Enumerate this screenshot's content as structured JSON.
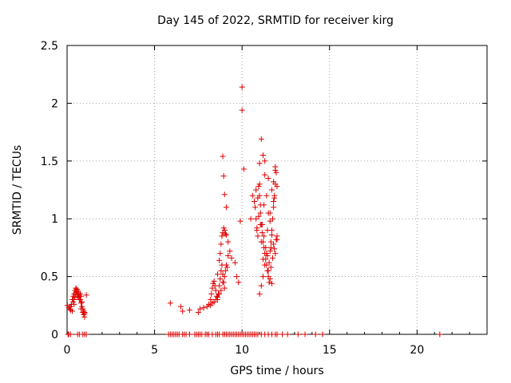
{
  "chart_data": {
    "type": "scatter",
    "title": "Day 145 of 2022, SRMTID for receiver kirg",
    "xlabel": "GPS time / hours",
    "ylabel": "SRMTID / TECUs",
    "xlim": [
      0,
      24
    ],
    "ylim": [
      0,
      2.5
    ],
    "xticks": [
      0,
      5,
      10,
      15,
      20
    ],
    "yticks": [
      0,
      0.5,
      1,
      1.5,
      2,
      2.5
    ],
    "ytick_labels": [
      "0",
      "0.5",
      "1",
      "1.5",
      "2",
      "2.5"
    ],
    "grid": true,
    "marker": "+",
    "color": "#e00000",
    "series": [
      {
        "name": "SRMTID",
        "x": [
          0.02,
          0.1,
          0.15,
          0.2,
          0.25,
          0.3,
          0.35,
          0.4,
          0.45,
          0.5,
          0.55,
          0.6,
          0.65,
          0.7,
          0.75,
          0.8,
          0.85,
          0.9,
          0.95,
          1.0,
          1.1,
          0.3,
          0.35,
          0.4,
          0.45,
          0.5,
          0.55,
          0.6,
          0.65,
          0.7,
          0.75,
          0.8,
          0.85,
          0.9,
          0.95,
          1.0,
          0.2,
          0.4,
          0.6,
          0.8,
          1.0,
          5.9,
          6.5,
          6.6,
          7.0,
          7.5,
          7.6,
          7.8,
          8.0,
          8.1,
          8.2,
          8.3,
          8.4,
          8.5,
          8.6,
          8.7,
          8.8,
          8.9,
          9.0,
          8.2,
          8.25,
          8.3,
          8.35,
          8.4,
          8.45,
          8.5,
          8.55,
          8.6,
          8.65,
          8.7,
          8.75,
          8.8,
          8.85,
          8.9,
          8.95,
          9.0,
          9.05,
          9.1,
          9.15,
          9.2,
          8.6,
          8.7,
          8.75,
          8.8,
          8.85,
          8.9,
          8.95,
          9.0,
          9.05,
          9.1,
          9.2,
          9.3,
          9.4,
          9.6,
          9.7,
          9.8,
          8.9,
          8.95,
          9.0,
          9.1,
          10.0,
          10.0,
          10.1,
          9.9,
          10.5,
          10.6,
          10.7,
          10.75,
          10.8,
          10.85,
          10.9,
          10.95,
          11.0,
          11.05,
          11.1,
          11.15,
          11.2,
          11.25,
          11.3,
          11.35,
          11.4,
          11.45,
          11.5,
          11.55,
          11.6,
          11.65,
          11.7,
          11.75,
          11.8,
          11.85,
          11.9,
          11.95,
          12.0,
          10.8,
          10.9,
          11.0,
          11.1,
          11.2,
          11.3,
          11.4,
          11.5,
          11.6,
          11.7,
          11.8,
          11.9,
          12.0,
          10.85,
          10.95,
          11.05,
          11.15,
          11.25,
          11.35,
          11.45,
          11.55,
          11.65,
          11.75,
          11.85,
          11.95,
          11.0,
          11.1,
          11.2,
          11.3,
          11.5,
          11.6,
          11.7,
          11.8,
          11.9,
          12.0,
          11.05,
          11.25,
          11.45,
          11.65,
          11.85,
          11.0,
          11.1,
          11.3,
          11.5,
          11.7,
          11.9,
          11.6,
          11.8,
          11.4,
          11.2,
          0.05,
          0.1,
          0.2,
          0.6,
          0.7,
          0.9,
          1.0,
          1.1,
          5.8,
          5.9,
          6.0,
          6.1,
          6.2,
          6.3,
          6.4,
          6.6,
          6.7,
          6.8,
          7.0,
          7.3,
          7.4,
          7.5,
          7.6,
          7.7,
          7.9,
          8.0,
          8.1,
          8.3,
          8.5,
          8.6,
          8.7,
          8.9,
          9.0,
          9.1,
          9.2,
          9.3,
          9.4,
          9.5,
          9.6,
          9.7,
          9.8,
          9.9,
          10.0,
          10.1,
          10.2,
          10.3,
          10.4,
          10.5,
          10.6,
          10.7,
          10.8,
          10.9,
          11.1,
          11.3,
          11.5,
          11.7,
          11.9,
          12.0,
          12.3,
          12.6,
          13.2,
          13.6,
          14.2,
          14.6,
          21.3
        ],
        "y": [
          0.25,
          0.23,
          0.22,
          0.24,
          0.26,
          0.3,
          0.33,
          0.35,
          0.38,
          0.4,
          0.37,
          0.34,
          0.32,
          0.3,
          0.35,
          0.33,
          0.28,
          0.22,
          0.2,
          0.18,
          0.34,
          0.2,
          0.28,
          0.3,
          0.32,
          0.36,
          0.39,
          0.38,
          0.36,
          0.33,
          0.3,
          0.27,
          0.24,
          0.19,
          0.17,
          0.15,
          0.21,
          0.26,
          0.33,
          0.22,
          0.19,
          0.27,
          0.24,
          0.2,
          0.21,
          0.19,
          0.22,
          0.23,
          0.24,
          0.26,
          0.25,
          0.27,
          0.28,
          0.3,
          0.32,
          0.35,
          0.38,
          0.45,
          0.5,
          0.3,
          0.35,
          0.4,
          0.44,
          0.46,
          0.42,
          0.38,
          0.33,
          0.3,
          0.35,
          0.42,
          0.48,
          0.55,
          0.6,
          0.52,
          0.45,
          0.4,
          0.55,
          0.6,
          0.58,
          0.68,
          0.52,
          0.64,
          0.7,
          0.78,
          0.85,
          0.88,
          0.92,
          0.9,
          0.87,
          0.86,
          0.8,
          0.72,
          0.66,
          0.62,
          0.5,
          0.45,
          1.54,
          1.37,
          1.21,
          1.1,
          2.14,
          1.94,
          1.43,
          0.98,
          1.0,
          1.2,
          1.15,
          1.1,
          1.0,
          0.9,
          0.85,
          1.28,
          1.3,
          1.05,
          0.95,
          0.88,
          0.8,
          0.75,
          0.7,
          0.65,
          0.6,
          0.55,
          0.5,
          0.45,
          0.72,
          0.8,
          0.9,
          1.0,
          1.1,
          1.2,
          1.3,
          1.4,
          0.85,
          1.25,
          1.18,
          1.48,
          1.69,
          1.55,
          1.38,
          1.2,
          1.05,
          0.98,
          0.86,
          0.78,
          0.7,
          0.82,
          0.92,
          1.02,
          1.12,
          0.95,
          0.85,
          0.75,
          0.68,
          0.62,
          0.58,
          0.66,
          0.74,
          0.82,
          0.35,
          0.42,
          0.5,
          0.6,
          0.55,
          0.48,
          0.44,
          1.32,
          1.42,
          1.28,
          0.95,
          1.12,
          0.9,
          0.75,
          1.18,
          1.2,
          0.8,
          1.5,
          1.35,
          1.25,
          1.45,
          1.05,
          1.15,
          0.7,
          0.65,
          0,
          0,
          0,
          0,
          0,
          0,
          0,
          0,
          0,
          0,
          0,
          0,
          0,
          0,
          0,
          0,
          0,
          0,
          0,
          0,
          0,
          0,
          0,
          0,
          0,
          0,
          0,
          0,
          0,
          0,
          0,
          0,
          0,
          0,
          0,
          0,
          0,
          0,
          0,
          0,
          0,
          0,
          0,
          0,
          0,
          0,
          0,
          0,
          0,
          0,
          0,
          0,
          0,
          0,
          0,
          0,
          0,
          0,
          0,
          0,
          0,
          0,
          0,
          0,
          0
        ]
      }
    ]
  }
}
